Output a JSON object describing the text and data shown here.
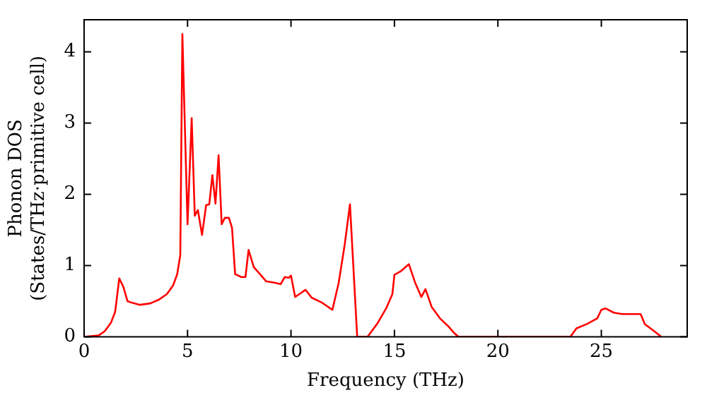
{
  "chart_data": {
    "type": "line",
    "xlabel": "Frequency (THz)",
    "ylabel": "Phonon DOS\n(States/THz·primitive cell)",
    "xlim": [
      0,
      29.15
    ],
    "ylim": [
      0,
      4.45
    ],
    "xticks": [
      0,
      5,
      10,
      15,
      20,
      25
    ],
    "yticks": [
      0,
      1,
      2,
      3,
      4
    ],
    "grid": false,
    "legend": false,
    "marker": "none",
    "line_style": "solid",
    "series": [
      {
        "color": "#ff0000",
        "x": [
          0,
          0.7,
          1.0,
          1.3,
          1.5,
          1.7,
          1.9,
          2.1,
          2.3,
          2.7,
          3.2,
          3.6,
          4.0,
          4.3,
          4.5,
          4.65,
          4.75,
          5.0,
          5.2,
          5.35,
          5.5,
          5.7,
          5.9,
          6.05,
          6.2,
          6.35,
          6.5,
          6.65,
          6.8,
          7.0,
          7.15,
          7.3,
          7.6,
          7.8,
          7.95,
          8.2,
          8.5,
          8.8,
          9.2,
          9.5,
          9.7,
          9.9,
          10.0,
          10.2,
          10.5,
          10.7,
          11.0,
          11.5,
          12.0,
          12.3,
          12.6,
          12.85,
          13.2,
          13.7,
          14.2,
          14.6,
          14.9,
          15.0,
          15.3,
          15.7,
          16.0,
          16.3,
          16.5,
          16.8,
          17.2,
          17.6,
          17.9,
          18.1,
          23.5,
          23.8,
          24.3,
          24.8,
          25.0,
          25.2,
          25.6,
          26.0,
          26.9,
          27.1,
          27.6,
          27.9
        ],
        "values": [
          0,
          0.02,
          0.08,
          0.2,
          0.35,
          0.82,
          0.7,
          0.5,
          0.48,
          0.45,
          0.47,
          0.52,
          0.6,
          0.72,
          0.88,
          1.15,
          4.25,
          1.58,
          3.07,
          1.7,
          1.78,
          1.43,
          1.85,
          1.86,
          2.27,
          1.87,
          2.55,
          1.58,
          1.67,
          1.67,
          1.53,
          0.88,
          0.84,
          0.84,
          1.22,
          0.98,
          0.88,
          0.78,
          0.76,
          0.74,
          0.84,
          0.83,
          0.86,
          0.56,
          0.62,
          0.66,
          0.55,
          0.48,
          0.38,
          0.75,
          1.3,
          1.86,
          0,
          0,
          0.2,
          0.4,
          0.6,
          0.87,
          0.92,
          1.02,
          0.76,
          0.56,
          0.67,
          0.42,
          0.26,
          0.15,
          0.05,
          0,
          0,
          0.12,
          0.18,
          0.26,
          0.38,
          0.4,
          0.34,
          0.32,
          0.32,
          0.18,
          0.07,
          0
        ]
      }
    ]
  }
}
